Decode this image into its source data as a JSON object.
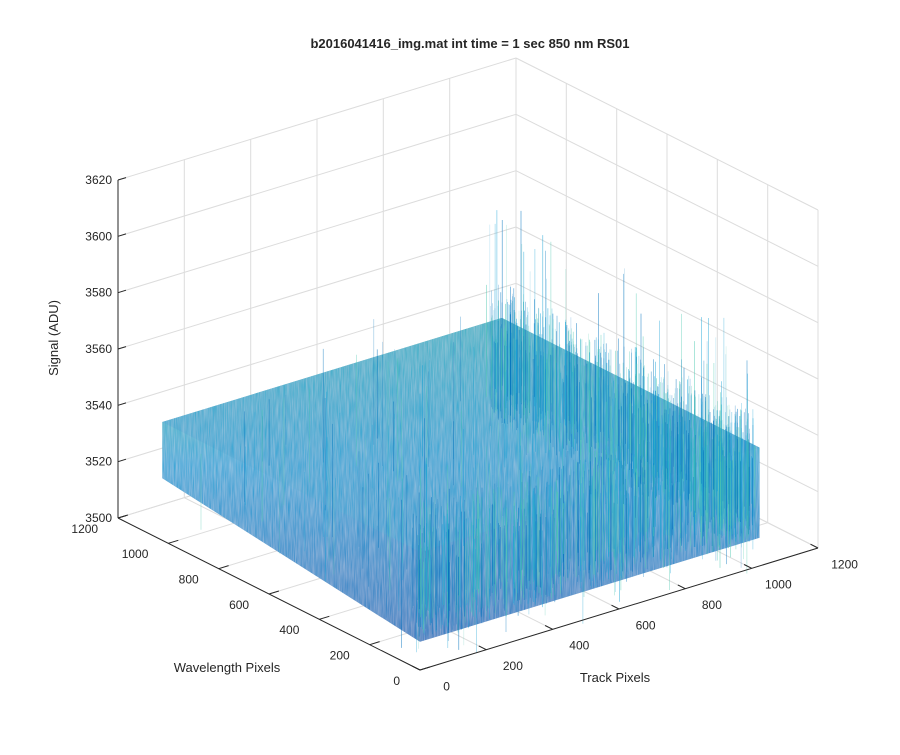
{
  "chart_data": {
    "type": "surface",
    "title": "b2016041416_img.mat int time = 1 sec  850 nm RS01",
    "xlabel": "Track Pixels",
    "ylabel": "Wavelength Pixels",
    "zlabel": "Signal (ADU)",
    "xlim": [
      0,
      1200
    ],
    "ylim": [
      0,
      1200
    ],
    "zlim": [
      3500,
      3620
    ],
    "x_ticks": [
      "0",
      "200",
      "400",
      "600",
      "800",
      "1000",
      "1200"
    ],
    "y_ticks": [
      "0",
      "200",
      "400",
      "600",
      "800",
      "1000",
      "1200"
    ],
    "z_ticks": [
      "3500",
      "3520",
      "3540",
      "3560",
      "3580",
      "3600",
      "3620"
    ],
    "surface": {
      "x_extent": [
        0,
        1024
      ],
      "y_extent": [
        0,
        1024
      ],
      "mean_signal": 3530,
      "noise_range": [
        3505,
        3585
      ]
    },
    "grid": true,
    "colors": {
      "surface_low": "#0072bd",
      "surface_mid": "#1aa3d6",
      "surface_high": "#4dc9b0"
    }
  }
}
